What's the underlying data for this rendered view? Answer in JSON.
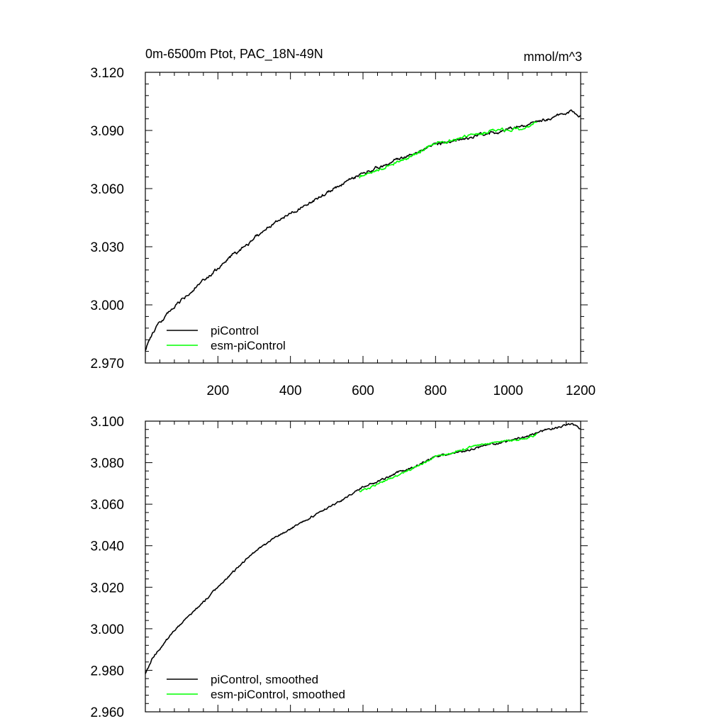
{
  "chart_data": [
    {
      "type": "line",
      "title": "0m-6500m Ptot, PAC_18N-49N",
      "units": "mmol/m^3",
      "xlim": [
        0,
        1200
      ],
      "ylim": [
        2.97,
        3.12
      ],
      "xticks": [
        200,
        400,
        600,
        800,
        1000,
        1200
      ],
      "xtick_labels": [
        "200",
        "400",
        "600",
        "800",
        "1000",
        "1200"
      ],
      "show_x_tick_labels": true,
      "yticks": [
        2.97,
        3.0,
        3.03,
        3.06,
        3.09,
        3.12
      ],
      "ytick_labels": [
        "2.970",
        "3.000",
        "3.030",
        "3.060",
        "3.090",
        "3.120"
      ],
      "legend_position": "bottom-left",
      "series": [
        {
          "name": "piControl",
          "color": "#000000",
          "noise": 0.0011,
          "x": [
            0,
            20,
            50,
            100,
            150,
            200,
            250,
            300,
            350,
            400,
            450,
            500,
            550,
            600,
            650,
            700,
            750,
            800,
            850,
            900,
            950,
            1000,
            1050,
            1100,
            1150,
            1175,
            1200
          ],
          "y": [
            2.977,
            2.986,
            2.993,
            3.0025,
            3.0105,
            3.0185,
            3.0265,
            3.0345,
            3.0415,
            3.0475,
            3.0525,
            3.058,
            3.063,
            3.068,
            3.0715,
            3.0755,
            3.079,
            3.0835,
            3.0845,
            3.0865,
            3.0885,
            3.0905,
            3.093,
            3.0955,
            3.0985,
            3.1,
            3.097
          ]
        },
        {
          "name": "esm-piControl",
          "color": "#00ff00",
          "noise": 0.0011,
          "x": [
            590,
            620,
            650,
            700,
            750,
            800,
            850,
            900,
            950,
            1000,
            1050,
            1080
          ],
          "y": [
            3.066,
            3.068,
            3.07,
            3.074,
            3.0785,
            3.0835,
            3.085,
            3.0875,
            3.0895,
            3.0905,
            3.092,
            3.094
          ]
        }
      ]
    },
    {
      "type": "line",
      "title": "",
      "units": "",
      "xlim": [
        0,
        1200
      ],
      "ylim": [
        2.96,
        3.1
      ],
      "xticks": [
        200,
        400,
        600,
        800,
        1000,
        1200
      ],
      "xtick_labels": [
        "200",
        "400",
        "600",
        "800",
        "1000",
        "1200"
      ],
      "show_x_tick_labels": false,
      "yticks": [
        2.96,
        2.98,
        3.0,
        3.02,
        3.04,
        3.06,
        3.08,
        3.1
      ],
      "ytick_labels": [
        "2.960",
        "2.980",
        "3.000",
        "3.020",
        "3.040",
        "3.060",
        "3.080",
        "3.100"
      ],
      "legend_position": "bottom-left",
      "series": [
        {
          "name": "piControl, smoothed",
          "color": "#000000",
          "noise": 0.0007,
          "x": [
            0,
            20,
            50,
            100,
            150,
            200,
            250,
            300,
            350,
            400,
            450,
            500,
            550,
            600,
            650,
            700,
            750,
            800,
            850,
            900,
            950,
            1000,
            1050,
            1100,
            1150,
            1175,
            1200
          ],
          "y": [
            2.978,
            2.986,
            2.993,
            3.003,
            3.011,
            3.02,
            3.029,
            3.037,
            3.043,
            3.048,
            3.053,
            3.058,
            3.063,
            3.068,
            3.0715,
            3.0755,
            3.0785,
            3.083,
            3.0845,
            3.0865,
            3.0885,
            3.09,
            3.0925,
            3.0955,
            3.0975,
            3.0985,
            3.0965
          ]
        },
        {
          "name": "esm-piControl, smoothed",
          "color": "#00ff00",
          "noise": 0.0007,
          "x": [
            590,
            620,
            650,
            700,
            750,
            800,
            850,
            900,
            950,
            1000,
            1050,
            1080
          ],
          "y": [
            3.066,
            3.068,
            3.07,
            3.074,
            3.078,
            3.083,
            3.085,
            3.0875,
            3.0895,
            3.0905,
            3.092,
            3.094
          ]
        }
      ]
    }
  ]
}
